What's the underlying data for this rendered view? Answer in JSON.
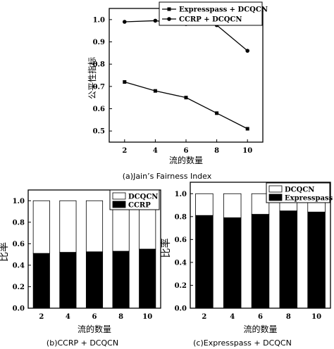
{
  "chart_data": [
    {
      "type": "line",
      "x": [
        2,
        4,
        6,
        8,
        10
      ],
      "xlim": [
        1,
        11
      ],
      "ylim": [
        0.45,
        1.05
      ],
      "yticks": [
        0.5,
        0.6,
        0.7,
        0.8,
        0.9,
        1.0
      ],
      "xlabel": "流的数量",
      "ylabel": "公平性指标",
      "legend_position": "top-right",
      "series": [
        {
          "name": "Expresspass + DCQCN",
          "marker": "square",
          "values": [
            0.72,
            0.68,
            0.65,
            0.58,
            0.51
          ]
        },
        {
          "name": "CCRP + DCQCN",
          "marker": "circle",
          "values": [
            0.99,
            0.995,
            0.98,
            0.975,
            0.86
          ]
        }
      ],
      "caption": "(a)Jain’s Fairness Index"
    },
    {
      "type": "bar",
      "stacked": true,
      "categories": [
        "2",
        "4",
        "6",
        "8",
        "10"
      ],
      "ylim": [
        0,
        1.1
      ],
      "yticks": [
        0.0,
        0.2,
        0.4,
        0.6,
        0.8,
        1.0
      ],
      "xlabel": "流的数量",
      "ylabel": "比率",
      "legend_position": "top-right",
      "series": [
        {
          "name": "CCRP",
          "color": "#000000",
          "values": [
            0.51,
            0.52,
            0.525,
            0.53,
            0.55
          ]
        },
        {
          "name": "DCQCN",
          "color": "#ffffff",
          "values": [
            0.49,
            0.48,
            0.475,
            0.47,
            0.45
          ]
        }
      ],
      "legend_order": [
        "DCQCN",
        "CCRP"
      ],
      "caption": "(b)CCRP + DCQCN"
    },
    {
      "type": "bar",
      "stacked": true,
      "categories": [
        "2",
        "4",
        "6",
        "8",
        "10"
      ],
      "ylim": [
        0,
        1.1
      ],
      "yticks": [
        0.0,
        0.2,
        0.4,
        0.6,
        0.8,
        1.0
      ],
      "xlabel": "流的数量",
      "ylabel": "比率",
      "legend_position": "top-right",
      "series": [
        {
          "name": "Expresspass",
          "color": "#000000",
          "values": [
            0.81,
            0.79,
            0.82,
            0.85,
            0.84
          ]
        },
        {
          "name": "DCQCN",
          "color": "#ffffff",
          "values": [
            0.19,
            0.21,
            0.18,
            0.15,
            0.16
          ]
        }
      ],
      "legend_order": [
        "DCQCN",
        "Expresspass"
      ],
      "caption": "(c)Expresspass + DCQCN"
    }
  ]
}
